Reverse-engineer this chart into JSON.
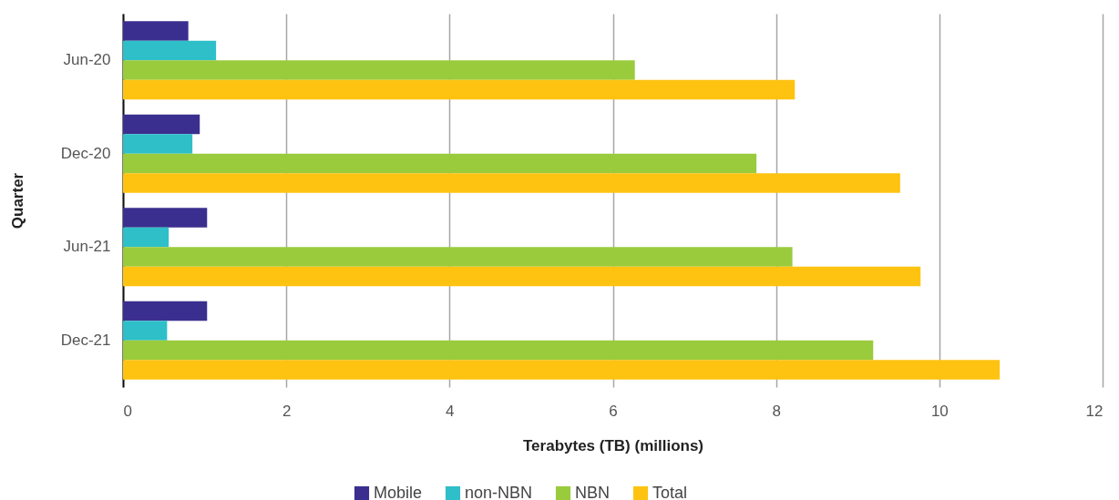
{
  "chart_data": {
    "type": "bar",
    "orientation": "horizontal",
    "xlabel": "Terabytes (TB) (millions)",
    "ylabel": "Quarter",
    "categories": [
      "Jun-20",
      "Dec-20",
      "Jun-21",
      "Dec-21"
    ],
    "series": [
      {
        "name": "Mobile",
        "color": "#3a2f8f",
        "values": [
          0.8,
          0.94,
          1.03,
          1.03
        ]
      },
      {
        "name": "non-NBN",
        "color": "#2ebfc8",
        "values": [
          1.14,
          0.85,
          0.56,
          0.54
        ]
      },
      {
        "name": "NBN",
        "color": "#9acb3c",
        "values": [
          6.27,
          7.76,
          8.2,
          9.19
        ]
      },
      {
        "name": "Total",
        "color": "#fec311",
        "values": [
          8.23,
          9.52,
          9.77,
          10.74
        ]
      }
    ],
    "xlim": [
      0,
      12
    ],
    "xticks": [
      0,
      2,
      4,
      6,
      8,
      10,
      12
    ],
    "grid": "x",
    "legend": "bottom"
  }
}
